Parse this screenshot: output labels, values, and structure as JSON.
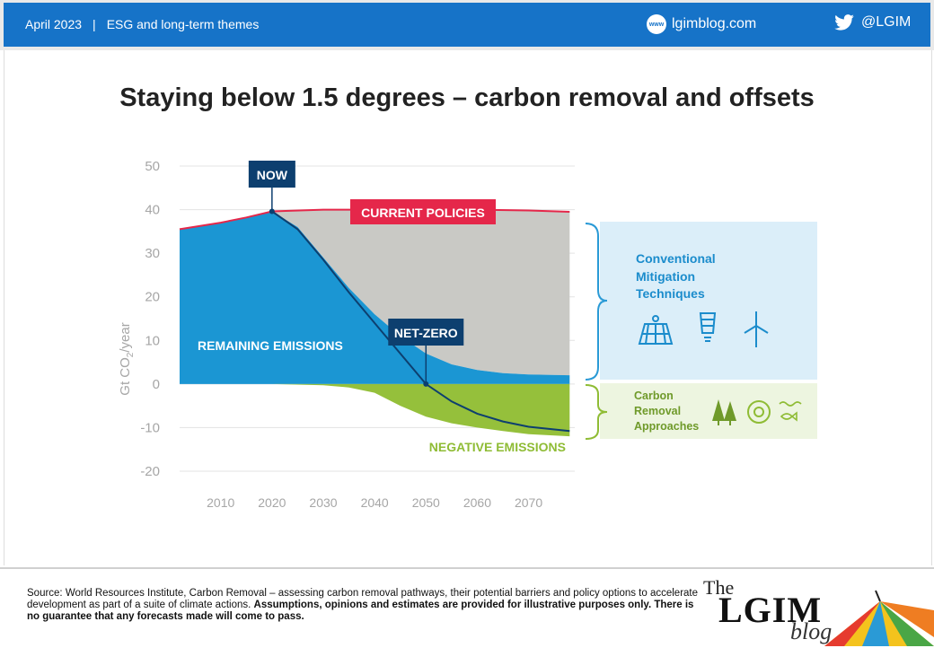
{
  "header": {
    "date": "April 2023",
    "separator": "|",
    "section": "ESG and long-term themes",
    "website": "lgimblog.com",
    "website_icon": "www-globe-icon",
    "website_icon_text": "www",
    "twitter_handle": "@LGIM",
    "twitter_icon": "twitter-bird-icon",
    "bar_color": "#1673c8"
  },
  "title": "Staying below 1.5 degrees – carbon removal and offsets",
  "chart_data": {
    "type": "area",
    "ylabel": "Gt CO2/year",
    "ylabel_main": "Gt CO",
    "ylabel_sub": "2",
    "ylabel_tail": "/year",
    "ylim": [
      -20,
      50
    ],
    "xlim": [
      2002,
      2079
    ],
    "yticks": [
      50,
      40,
      30,
      20,
      10,
      0,
      -10,
      -20
    ],
    "xticks": [
      2010,
      2020,
      2030,
      2040,
      2050,
      2060,
      2070
    ],
    "grid": true,
    "series": [
      {
        "name": "CURRENT POLICIES",
        "color": "#e5274a",
        "x": [
          2002,
          2010,
          2015,
          2020,
          2030,
          2040,
          2050,
          2060,
          2070,
          2078
        ],
        "y": [
          35.5,
          37,
          38.2,
          39.6,
          40,
          40,
          40,
          40,
          39.8,
          39.5
        ]
      },
      {
        "name": "REMAINING EMISSIONS",
        "color": "#1b96d3",
        "x": [
          2002,
          2010,
          2015,
          2020,
          2025,
          2030,
          2035,
          2040,
          2045,
          2050,
          2055,
          2060,
          2065,
          2070,
          2078
        ],
        "y": [
          35.5,
          37,
          38.2,
          39.6,
          36,
          29,
          22,
          16,
          11,
          7,
          4.5,
          3.2,
          2.5,
          2.2,
          2
        ]
      },
      {
        "name": "NEGATIVE EMISSIONS",
        "color": "#95c03b",
        "x": [
          2002,
          2020,
          2030,
          2035,
          2040,
          2045,
          2050,
          2055,
          2060,
          2065,
          2070,
          2078
        ],
        "y": [
          0,
          0,
          -0.3,
          -0.8,
          -2,
          -5,
          -7.5,
          -9,
          -10,
          -10.8,
          -11.5,
          -12
        ]
      },
      {
        "name": "Net emissions",
        "color": "#0d3f6f",
        "x": [
          2020,
          2025,
          2030,
          2035,
          2040,
          2045,
          2050,
          2055,
          2060,
          2065,
          2070,
          2078
        ],
        "y": [
          39.6,
          35.5,
          28.5,
          21,
          14,
          7,
          0,
          -4,
          -6.8,
          -8.6,
          -9.8,
          -10.8
        ]
      }
    ],
    "annotations": [
      {
        "text": "NOW",
        "x": 2020,
        "y": 39.6
      },
      {
        "text": "NET-ZERO",
        "x": 2050,
        "y": 0
      },
      {
        "text": "CURRENT POLICIES"
      },
      {
        "text": "REMAINING EMISSIONS"
      },
      {
        "text": "NEGATIVE EMISSIONS"
      }
    ],
    "colors": {
      "gap_fill": "#c9c9c5",
      "callout_dark": "#0d3f6f",
      "axis_text": "#a6a6a6",
      "bracket": "#2a9ad6",
      "bracket_green": "#8fbc35"
    },
    "side_boxes": [
      {
        "label_lines": [
          "Conventional",
          "Mitigation",
          "Techniques"
        ],
        "bg": "#dbeef9",
        "icons": [
          "solar-panel-icon",
          "light-bulb-icon",
          "wind-turbine-icon"
        ]
      },
      {
        "label_lines": [
          "Carbon",
          "Removal",
          "Approaches"
        ],
        "bg": "#edf5e0",
        "icons": [
          "trees-icon",
          "sun-circle-icon",
          "ocean-fish-icon"
        ]
      }
    ]
  },
  "footer": {
    "source_prefix": "Source: World Resources Institute, Carbon Removal – assessing carbon removal pathways, their potential barriers and policy options to accelerate development as part of a suite of climate actions.",
    "source_bold": "Assumptions, opinions and estimates are provided for illustrative purposes only. There is no guarantee that any forecasts made will come to pass.",
    "logo_the": "The",
    "logo_lgim": "LGIM",
    "logo_blog": "blog"
  }
}
